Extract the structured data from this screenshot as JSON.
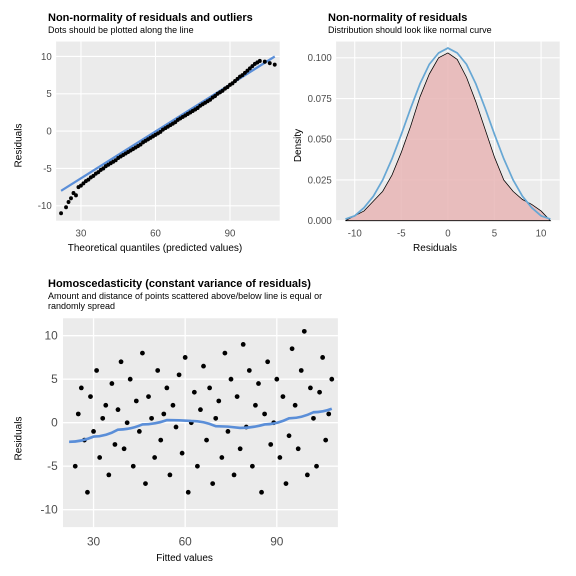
{
  "typography": {
    "title_pt": 11,
    "subtitle_pt": 9,
    "axis_label_pt": 10,
    "tick_pt": 9
  },
  "colors": {
    "panel_bg": "#ebebeb",
    "grid_major": "#ffffff",
    "grid_minor": "#f5f5f5",
    "point": "#000000",
    "line": "#5a8ed8",
    "density_fill": "#e8b5b5",
    "density_stroke": "#000000",
    "normal_curve": "#67a7d4",
    "page_bg": "#ffffff"
  },
  "qq": {
    "type": "scatter",
    "title": "Non-normality of residuals and outliers",
    "subtitle": "Dots should be plotted along the line",
    "xlabel": "Theoretical quantiles (predicted values)",
    "ylabel": "Residuals",
    "xlim": [
      20,
      110
    ],
    "xticks": [
      30,
      60,
      90
    ],
    "ylim": [
      -12,
      12
    ],
    "yticks": [
      -10,
      -5,
      0,
      5,
      10
    ],
    "line": {
      "x1": 22,
      "y1": -8,
      "x2": 108,
      "y2": 10,
      "color": "#5a8ed8",
      "width": 2
    },
    "point_radius": 1.8,
    "points": [
      [
        22,
        -11
      ],
      [
        24,
        -10.2
      ],
      [
        25,
        -9.5
      ],
      [
        26,
        -9
      ],
      [
        27,
        -8.3
      ],
      [
        28,
        -8.6
      ],
      [
        29,
        -7.5
      ],
      [
        30,
        -7.3
      ],
      [
        31,
        -7
      ],
      [
        32,
        -6.7
      ],
      [
        33,
        -6.5
      ],
      [
        34,
        -6.2
      ],
      [
        35,
        -6
      ],
      [
        36,
        -5.7
      ],
      [
        37,
        -5.5
      ],
      [
        38,
        -5.2
      ],
      [
        39,
        -5
      ],
      [
        40,
        -4.7
      ],
      [
        41,
        -4.5
      ],
      [
        42,
        -4.3
      ],
      [
        43,
        -4.1
      ],
      [
        44,
        -3.9
      ],
      [
        45,
        -3.6
      ],
      [
        46,
        -3.4
      ],
      [
        47,
        -3.2
      ],
      [
        48,
        -3.0
      ],
      [
        49,
        -2.8
      ],
      [
        50,
        -2.6
      ],
      [
        51,
        -2.4
      ],
      [
        52,
        -2.2
      ],
      [
        53,
        -2.0
      ],
      [
        54,
        -1.8
      ],
      [
        55,
        -1.5
      ],
      [
        56,
        -1.3
      ],
      [
        57,
        -1.1
      ],
      [
        58,
        -0.9
      ],
      [
        59,
        -0.7
      ],
      [
        60,
        -0.5
      ],
      [
        61,
        -0.3
      ],
      [
        62,
        -0.1
      ],
      [
        63,
        0.2
      ],
      [
        64,
        0.4
      ],
      [
        65,
        0.6
      ],
      [
        66,
        0.8
      ],
      [
        67,
        1.0
      ],
      [
        68,
        1.2
      ],
      [
        69,
        1.5
      ],
      [
        70,
        1.7
      ],
      [
        71,
        1.9
      ],
      [
        72,
        2.1
      ],
      [
        73,
        2.3
      ],
      [
        74,
        2.5
      ],
      [
        75,
        2.7
      ],
      [
        76,
        2.9
      ],
      [
        77,
        3.1
      ],
      [
        78,
        3.4
      ],
      [
        79,
        3.6
      ],
      [
        80,
        3.8
      ],
      [
        81,
        4.0
      ],
      [
        82,
        4.2
      ],
      [
        83,
        4.5
      ],
      [
        84,
        4.7
      ],
      [
        85,
        5.0
      ],
      [
        86,
        5.2
      ],
      [
        87,
        5.4
      ],
      [
        88,
        5.7
      ],
      [
        89,
        5.9
      ],
      [
        90,
        6.2
      ],
      [
        91,
        6.4
      ],
      [
        92,
        6.7
      ],
      [
        93,
        7.0
      ],
      [
        94,
        7.3
      ],
      [
        95,
        7.5
      ],
      [
        96,
        7.8
      ],
      [
        97,
        8.1
      ],
      [
        98,
        8.4
      ],
      [
        99,
        8.7
      ],
      [
        100,
        9.0
      ],
      [
        101,
        9.2
      ],
      [
        102,
        9.4
      ],
      [
        104,
        9.3
      ],
      [
        106,
        9.1
      ],
      [
        108,
        8.9
      ]
    ]
  },
  "density": {
    "type": "density",
    "title": "Non-normality of residuals",
    "subtitle": "Distribution should look like normal curve",
    "xlabel": "Residuals",
    "ylabel": "Density",
    "xlim": [
      -12,
      12
    ],
    "xticks": [
      -10,
      -5,
      0,
      5,
      10
    ],
    "ylim": [
      0,
      0.11
    ],
    "yticks": [
      0.0,
      0.025,
      0.05,
      0.075,
      0.1
    ],
    "fill_color": "#e8b5b5",
    "actual_curve": [
      [
        -11,
        0
      ],
      [
        -10,
        0.003
      ],
      [
        -9,
        0.006
      ],
      [
        -8,
        0.012
      ],
      [
        -7,
        0.018
      ],
      [
        -6,
        0.028
      ],
      [
        -5,
        0.042
      ],
      [
        -4,
        0.058
      ],
      [
        -3,
        0.076
      ],
      [
        -2,
        0.09
      ],
      [
        -1,
        0.1
      ],
      [
        0,
        0.103
      ],
      [
        1,
        0.099
      ],
      [
        2,
        0.088
      ],
      [
        3,
        0.073
      ],
      [
        4,
        0.056
      ],
      [
        5,
        0.039
      ],
      [
        6,
        0.025
      ],
      [
        7,
        0.018
      ],
      [
        8,
        0.013
      ],
      [
        9,
        0.01
      ],
      [
        10,
        0.006
      ],
      [
        11,
        0
      ]
    ],
    "normal_curve": [
      [
        -11,
        0.001
      ],
      [
        -10,
        0.003
      ],
      [
        -9,
        0.008
      ],
      [
        -8,
        0.015
      ],
      [
        -7,
        0.025
      ],
      [
        -6,
        0.038
      ],
      [
        -5,
        0.053
      ],
      [
        -4,
        0.069
      ],
      [
        -3,
        0.084
      ],
      [
        -2,
        0.096
      ],
      [
        -1,
        0.103
      ],
      [
        0,
        0.106
      ],
      [
        1,
        0.103
      ],
      [
        2,
        0.096
      ],
      [
        3,
        0.084
      ],
      [
        4,
        0.069
      ],
      [
        5,
        0.053
      ],
      [
        6,
        0.038
      ],
      [
        7,
        0.025
      ],
      [
        8,
        0.015
      ],
      [
        9,
        0.008
      ],
      [
        10,
        0.003
      ],
      [
        11,
        0.001
      ]
    ]
  },
  "homo": {
    "type": "scatter",
    "title": "Homoscedasticity (constant variance of residuals)",
    "subtitle": "Amount and distance of points scattered above/below line is equal or randomly spread",
    "xlabel": "Fitted values",
    "ylabel": "Residuals",
    "xlim": [
      20,
      110
    ],
    "xticks": [
      30,
      60,
      90
    ],
    "ylim": [
      -12,
      12
    ],
    "yticks": [
      -10,
      -5,
      0,
      5,
      10
    ],
    "smooth": [
      [
        22,
        -2.2
      ],
      [
        30,
        -1.6
      ],
      [
        38,
        -0.8
      ],
      [
        46,
        -0.2
      ],
      [
        54,
        0.3
      ],
      [
        62,
        0.2
      ],
      [
        70,
        -0.4
      ],
      [
        78,
        -0.6
      ],
      [
        86,
        -0.2
      ],
      [
        94,
        0.5
      ],
      [
        102,
        1.2
      ],
      [
        108,
        1.6
      ]
    ],
    "smooth_color": "#5a8ed8",
    "point_radius": 1.8,
    "points": [
      [
        24,
        -5
      ],
      [
        25,
        1
      ],
      [
        26,
        4
      ],
      [
        27,
        -2
      ],
      [
        28,
        -8
      ],
      [
        29,
        3
      ],
      [
        30,
        -1
      ],
      [
        31,
        6
      ],
      [
        32,
        -4
      ],
      [
        33,
        0.5
      ],
      [
        34,
        2
      ],
      [
        35,
        -6
      ],
      [
        36,
        4.5
      ],
      [
        37,
        -2.5
      ],
      [
        38,
        1.5
      ],
      [
        39,
        7
      ],
      [
        40,
        -3
      ],
      [
        41,
        0
      ],
      [
        42,
        5
      ],
      [
        43,
        -5
      ],
      [
        44,
        2.5
      ],
      [
        45,
        -1
      ],
      [
        46,
        8
      ],
      [
        47,
        -7
      ],
      [
        48,
        3
      ],
      [
        49,
        0.5
      ],
      [
        50,
        -4
      ],
      [
        51,
        6
      ],
      [
        52,
        -2
      ],
      [
        53,
        1
      ],
      [
        54,
        4
      ],
      [
        55,
        -6
      ],
      [
        56,
        2
      ],
      [
        57,
        -0.5
      ],
      [
        58,
        5.5
      ],
      [
        59,
        -3.5
      ],
      [
        60,
        7.5
      ],
      [
        61,
        -8
      ],
      [
        62,
        0
      ],
      [
        63,
        3.5
      ],
      [
        64,
        -5
      ],
      [
        65,
        1.5
      ],
      [
        66,
        6.5
      ],
      [
        67,
        -2
      ],
      [
        68,
        4
      ],
      [
        69,
        -7
      ],
      [
        70,
        0.5
      ],
      [
        71,
        2.5
      ],
      [
        72,
        -4
      ],
      [
        73,
        8
      ],
      [
        74,
        -1
      ],
      [
        75,
        5
      ],
      [
        76,
        -6
      ],
      [
        77,
        3
      ],
      [
        78,
        -3
      ],
      [
        79,
        9
      ],
      [
        80,
        -0.5
      ],
      [
        81,
        6
      ],
      [
        82,
        -5
      ],
      [
        83,
        2
      ],
      [
        84,
        4.5
      ],
      [
        85,
        -8
      ],
      [
        86,
        1
      ],
      [
        87,
        7
      ],
      [
        88,
        -2.5
      ],
      [
        89,
        0
      ],
      [
        90,
        5
      ],
      [
        91,
        -4
      ],
      [
        92,
        3
      ],
      [
        93,
        -7
      ],
      [
        94,
        -1.5
      ],
      [
        95,
        8.5
      ],
      [
        96,
        2
      ],
      [
        97,
        -3
      ],
      [
        98,
        6
      ],
      [
        99,
        10.5
      ],
      [
        100,
        -6
      ],
      [
        101,
        4
      ],
      [
        102,
        0.5
      ],
      [
        103,
        -5
      ],
      [
        104,
        3.5
      ],
      [
        105,
        7.5
      ],
      [
        106,
        -2
      ],
      [
        107,
        1
      ],
      [
        108,
        5
      ]
    ]
  }
}
